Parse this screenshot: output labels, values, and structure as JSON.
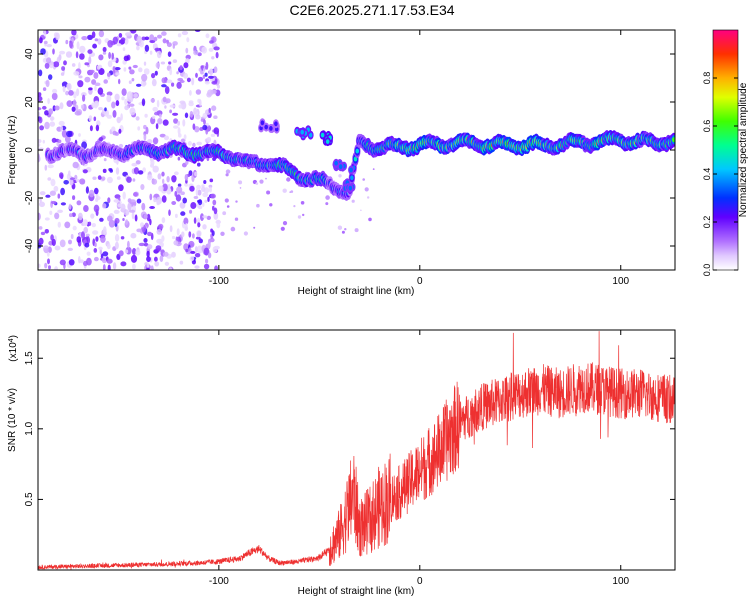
{
  "title": "C2E6.2025.271.17.53.E34",
  "chart_data": [
    {
      "type": "heatmap",
      "title": "C2E6.2025.271.17.53.E34",
      "xlabel": "Height of straight line (km)",
      "ylabel": "Frequency (Hz)",
      "xlim": [
        -190,
        127
      ],
      "ylim": [
        -50,
        50
      ],
      "xticks": [
        -100,
        0,
        100
      ],
      "xtick_labels": [
        "-100",
        "0",
        "100"
      ],
      "yticks": [
        -40,
        -20,
        0,
        20,
        40
      ],
      "ytick_labels": [
        "-40",
        "-20",
        "0",
        "20",
        "40"
      ],
      "colorbar": {
        "label": "Normalized spectral amplitude",
        "range": [
          0,
          1
        ],
        "ticks": [
          0.0,
          0.2,
          0.4,
          0.6,
          0.8
        ],
        "tick_labels": [
          "0.0",
          "0.2",
          "0.4",
          "0.6",
          "0.8"
        ]
      },
      "noise_region_x": [
        -190,
        -100
      ],
      "signal_track": [
        {
          "x": -185,
          "f": -1,
          "amp": 0.3
        },
        {
          "x": -160,
          "f": -1,
          "amp": 0.35
        },
        {
          "x": -130,
          "f": 0,
          "amp": 0.45
        },
        {
          "x": -110,
          "f": -1,
          "amp": 0.55
        },
        {
          "x": -95,
          "f": -2,
          "amp": 0.55
        },
        {
          "x": -85,
          "f": -6,
          "amp": 0.45
        },
        {
          "x": -75,
          "f": -5,
          "amp": 0.5
        },
        {
          "x": -65,
          "f": -9,
          "amp": 0.6
        },
        {
          "x": -55,
          "f": -12,
          "amp": 0.5
        },
        {
          "x": -45,
          "f": -14,
          "amp": 0.4
        },
        {
          "x": -35,
          "f": -18,
          "amp": 0.35
        },
        {
          "x": -30,
          "f": 3,
          "amp": 0.5
        },
        {
          "x": -20,
          "f": 1,
          "amp": 0.55
        },
        {
          "x": 0,
          "f": 2,
          "amp": 0.7
        },
        {
          "x": 20,
          "f": 3,
          "amp": 0.65
        },
        {
          "x": 40,
          "f": 2,
          "amp": 0.75
        },
        {
          "x": 60,
          "f": 2,
          "amp": 0.7
        },
        {
          "x": 80,
          "f": 3,
          "amp": 0.65
        },
        {
          "x": 100,
          "f": 4,
          "amp": 0.7
        },
        {
          "x": 115,
          "f": 3,
          "amp": 0.6
        },
        {
          "x": 127,
          "f": 4,
          "amp": 0.6
        }
      ],
      "secondary_blobs": [
        {
          "x": -75,
          "f": 10,
          "amp": 0.25
        },
        {
          "x": -58,
          "f": 7,
          "amp": 0.4
        },
        {
          "x": -45,
          "f": 5,
          "amp": 0.45
        },
        {
          "x": -38,
          "f": -7,
          "amp": 0.35
        },
        {
          "x": -35,
          "f": -15,
          "amp": 0.35
        }
      ]
    },
    {
      "type": "line",
      "xlabel": "Height of straight line (km)",
      "ylabel": "SNR (10 * v/v)",
      "y_scale_label": "(x10",
      "y_scale_exponent": "4",
      "xlim": [
        -190,
        127
      ],
      "ylim": [
        0,
        1.7
      ],
      "xticks": [
        -100,
        0,
        100
      ],
      "xtick_labels": [
        "-100",
        "0",
        "100"
      ],
      "yticks": [
        0.5,
        1.0,
        1.5
      ],
      "ytick_labels": [
        "0.5",
        "1.0",
        "1.5"
      ],
      "color": "#ee3030",
      "series": [
        {
          "name": "SNR",
          "x": [
            -190,
            -160,
            -130,
            -110,
            -100,
            -90,
            -85,
            -80,
            -75,
            -70,
            -60,
            -50,
            -45,
            -40,
            -35,
            -33,
            -30,
            -25,
            -20,
            -10,
            0,
            10,
            20,
            30,
            40,
            50,
            60,
            70,
            80,
            90,
            100,
            110,
            120,
            127
          ],
          "y": [
            0.02,
            0.03,
            0.04,
            0.05,
            0.06,
            0.08,
            0.12,
            0.15,
            0.08,
            0.05,
            0.06,
            0.09,
            0.15,
            0.25,
            0.45,
            0.55,
            0.3,
            0.35,
            0.45,
            0.55,
            0.7,
            0.85,
            1.05,
            1.15,
            1.2,
            1.25,
            1.28,
            1.25,
            1.3,
            1.28,
            1.25,
            1.25,
            1.22,
            1.2
          ]
        }
      ]
    }
  ]
}
